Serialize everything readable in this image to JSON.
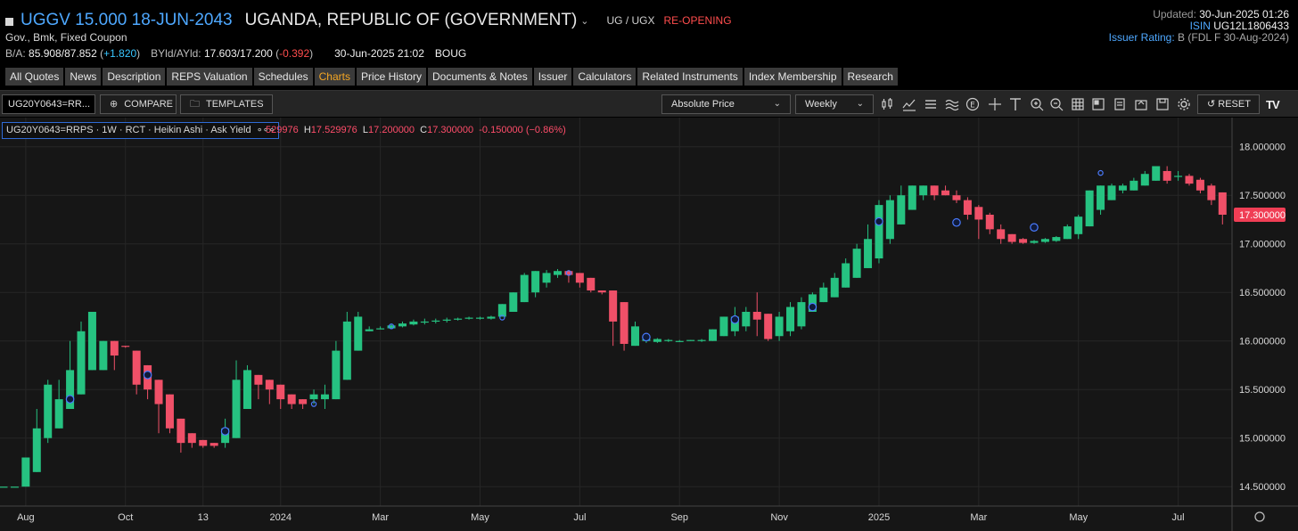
{
  "header": {
    "security_title": "UGGV 15.000 18-JUN-2043",
    "issuer": "UGANDA, REPUBLIC OF (GOVERNMENT)",
    "currency_pair": "UG / UGX",
    "status": "RE-OPENING",
    "subtitle": "Gov., Bmk, Fixed Coupon",
    "quote": {
      "ba_label": "B/A:",
      "ba_value": "85.908/87.852",
      "ba_change": "+1.820",
      "yield_label": "BYld/AYld:",
      "yield_value": "17.603/17.200",
      "yield_change": "-0.392",
      "timestamp": "30-Jun-2025 21:02",
      "source": "BOUG"
    },
    "updated_label": "Updated:",
    "updated_value": "30-Jun-2025 01:26",
    "isin_label": "ISIN",
    "isin_value": "UG12L1806433",
    "rating_label": "Issuer Rating:",
    "rating_value": "B",
    "rating_detail": "(FDL F 30-Aug-2024)"
  },
  "tabs": [
    "All Quotes",
    "News",
    "Description",
    "REPS Valuation",
    "Schedules",
    "Charts",
    "Price History",
    "Documents & Notes",
    "Issuer",
    "Calculators",
    "Related Instruments",
    "Index Membership",
    "Research"
  ],
  "active_tab": "Charts",
  "toolbar": {
    "ric_value": "UG20Y0643=RR...",
    "compare_label": "COMPARE",
    "templates_label": "TEMPLATES",
    "price_type": "Absolute Price",
    "interval": "Weekly",
    "reset_label": "RESET",
    "logo_text": "TV"
  },
  "legend": {
    "series": "UG20Y0643=RRPS · 1W · RCT · Heikin Ashi · Ask Yield",
    "menu": "∘∘∘",
    "ohlc_o": "529976",
    "ohlc_h_label": "H",
    "ohlc_h": "17.529976",
    "ohlc_l_label": "L",
    "ohlc_l": "17.200000",
    "ohlc_c_label": "C",
    "ohlc_c": "17.300000",
    "ohlc_change": "-0.150000 (−0.86%)"
  },
  "colors": {
    "up": "#26c281",
    "down": "#f05068",
    "accent": "#4ea8ff",
    "active_tab": "#f5a623",
    "last_price_bg": "#f03e55"
  },
  "chart_data": {
    "type": "candlestick",
    "style": "Heikin Ashi",
    "interval": "1W",
    "y_axis_ticks": [
      "14.500000",
      "15.000000",
      "15.500000",
      "16.000000",
      "16.500000",
      "17.000000",
      "17.500000",
      "18.000000"
    ],
    "ylim": [
      14.3,
      18.3
    ],
    "last_value_label": "17.300000",
    "x_axis_labels": [
      "Aug",
      "Oct",
      "13",
      "2024",
      "Mar",
      "May",
      "Jul",
      "Sep",
      "Nov",
      "2025",
      "Mar",
      "May",
      "Jul"
    ],
    "x_label_weeks": [
      2,
      11,
      18,
      25,
      34,
      43,
      52,
      61,
      70,
      79,
      88,
      97,
      106
    ],
    "x_week_count": 110,
    "grid": true,
    "candles": [
      {
        "w": 0,
        "o": 14.5,
        "h": 14.5,
        "l": 14.5,
        "c": 14.5
      },
      {
        "w": 1,
        "o": 14.5,
        "h": 14.5,
        "l": 14.5,
        "c": 14.5
      },
      {
        "w": 2,
        "o": 14.5,
        "h": 14.8,
        "l": 14.5,
        "c": 14.8
      },
      {
        "w": 3,
        "o": 14.65,
        "h": 15.3,
        "l": 14.65,
        "c": 15.1
      },
      {
        "w": 4,
        "o": 15.0,
        "h": 15.6,
        "l": 14.95,
        "c": 15.55
      },
      {
        "w": 5,
        "o": 15.1,
        "h": 15.6,
        "l": 15.1,
        "c": 15.4
      },
      {
        "w": 6,
        "o": 15.3,
        "h": 16.0,
        "l": 15.3,
        "c": 15.7
      },
      {
        "w": 7,
        "o": 15.45,
        "h": 16.2,
        "l": 15.45,
        "c": 16.1
      },
      {
        "w": 8,
        "o": 15.7,
        "h": 16.3,
        "l": 15.7,
        "c": 16.3
      },
      {
        "w": 9,
        "o": 15.7,
        "h": 16.0,
        "l": 15.7,
        "c": 16.0
      },
      {
        "w": 10,
        "o": 16.0,
        "h": 16.0,
        "l": 15.7,
        "c": 15.85
      },
      {
        "w": 11,
        "o": 15.95,
        "h": 15.95,
        "l": 15.93,
        "c": 15.94
      },
      {
        "w": 12,
        "o": 15.9,
        "h": 15.9,
        "l": 15.45,
        "c": 15.55
      },
      {
        "w": 13,
        "o": 15.75,
        "h": 15.75,
        "l": 15.4,
        "c": 15.5
      },
      {
        "w": 14,
        "o": 15.6,
        "h": 15.6,
        "l": 15.05,
        "c": 15.35
      },
      {
        "w": 15,
        "o": 15.45,
        "h": 15.45,
        "l": 15.05,
        "c": 15.1
      },
      {
        "w": 16,
        "o": 15.2,
        "h": 15.2,
        "l": 14.85,
        "c": 14.95
      },
      {
        "w": 17,
        "o": 15.05,
        "h": 15.05,
        "l": 14.9,
        "c": 14.95
      },
      {
        "w": 18,
        "o": 14.98,
        "h": 14.98,
        "l": 14.9,
        "c": 14.92
      },
      {
        "w": 19,
        "o": 14.95,
        "h": 14.95,
        "l": 14.9,
        "c": 14.92
      },
      {
        "w": 20,
        "o": 14.95,
        "h": 15.2,
        "l": 14.9,
        "c": 15.1
      },
      {
        "w": 21,
        "o": 15.0,
        "h": 15.8,
        "l": 15.0,
        "c": 15.6
      },
      {
        "w": 22,
        "o": 15.3,
        "h": 15.75,
        "l": 15.3,
        "c": 15.7
      },
      {
        "w": 23,
        "o": 15.65,
        "h": 15.65,
        "l": 15.4,
        "c": 15.55
      },
      {
        "w": 24,
        "o": 15.6,
        "h": 15.6,
        "l": 15.35,
        "c": 15.5
      },
      {
        "w": 25,
        "o": 15.55,
        "h": 15.55,
        "l": 15.3,
        "c": 15.4
      },
      {
        "w": 26,
        "o": 15.45,
        "h": 15.45,
        "l": 15.3,
        "c": 15.35
      },
      {
        "w": 27,
        "o": 15.4,
        "h": 15.4,
        "l": 15.3,
        "c": 15.35
      },
      {
        "w": 28,
        "o": 15.4,
        "h": 15.5,
        "l": 15.35,
        "c": 15.45
      },
      {
        "w": 29,
        "o": 15.4,
        "h": 15.55,
        "l": 15.3,
        "c": 15.45
      },
      {
        "w": 30,
        "o": 15.4,
        "h": 16.0,
        "l": 15.4,
        "c": 15.9
      },
      {
        "w": 31,
        "o": 15.6,
        "h": 16.3,
        "l": 15.6,
        "c": 16.2
      },
      {
        "w": 32,
        "o": 15.9,
        "h": 16.3,
        "l": 15.9,
        "c": 16.25
      },
      {
        "w": 33,
        "o": 16.1,
        "h": 16.15,
        "l": 16.1,
        "c": 16.12
      },
      {
        "w": 34,
        "o": 16.12,
        "h": 16.15,
        "l": 16.12,
        "c": 16.13
      },
      {
        "w": 35,
        "o": 16.13,
        "h": 16.17,
        "l": 16.13,
        "c": 16.16
      },
      {
        "w": 36,
        "o": 16.15,
        "h": 16.2,
        "l": 16.14,
        "c": 16.18
      },
      {
        "w": 37,
        "o": 16.17,
        "h": 16.22,
        "l": 16.16,
        "c": 16.2
      },
      {
        "w": 38,
        "o": 16.19,
        "h": 16.23,
        "l": 16.17,
        "c": 16.2
      },
      {
        "w": 39,
        "o": 16.2,
        "h": 16.23,
        "l": 16.18,
        "c": 16.21
      },
      {
        "w": 40,
        "o": 16.21,
        "h": 16.24,
        "l": 16.19,
        "c": 16.22
      },
      {
        "w": 41,
        "o": 16.22,
        "h": 16.24,
        "l": 16.21,
        "c": 16.23
      },
      {
        "w": 42,
        "o": 16.23,
        "h": 16.25,
        "l": 16.22,
        "c": 16.24
      },
      {
        "w": 43,
        "o": 16.23,
        "h": 16.25,
        "l": 16.22,
        "c": 16.24
      },
      {
        "w": 44,
        "o": 16.23,
        "h": 16.26,
        "l": 16.22,
        "c": 16.25
      },
      {
        "w": 45,
        "o": 16.25,
        "h": 16.38,
        "l": 16.25,
        "c": 16.38
      },
      {
        "w": 46,
        "o": 16.3,
        "h": 16.5,
        "l": 16.3,
        "c": 16.5
      },
      {
        "w": 47,
        "o": 16.4,
        "h": 16.7,
        "l": 16.4,
        "c": 16.68
      },
      {
        "w": 48,
        "o": 16.5,
        "h": 16.72,
        "l": 16.45,
        "c": 16.72
      },
      {
        "w": 49,
        "o": 16.6,
        "h": 16.73,
        "l": 16.55,
        "c": 16.7
      },
      {
        "w": 50,
        "o": 16.68,
        "h": 16.74,
        "l": 16.65,
        "c": 16.72
      },
      {
        "w": 51,
        "o": 16.72,
        "h": 16.73,
        "l": 16.6,
        "c": 16.68
      },
      {
        "w": 52,
        "o": 16.7,
        "h": 16.7,
        "l": 16.55,
        "c": 16.6
      },
      {
        "w": 53,
        "o": 16.65,
        "h": 16.65,
        "l": 16.5,
        "c": 16.52
      },
      {
        "w": 54,
        "o": 16.52,
        "h": 16.52,
        "l": 16.48,
        "c": 16.5
      },
      {
        "w": 55,
        "o": 16.52,
        "h": 16.52,
        "l": 15.95,
        "c": 16.2
      },
      {
        "w": 56,
        "o": 16.4,
        "h": 16.4,
        "l": 15.9,
        "c": 15.97
      },
      {
        "w": 57,
        "o": 15.95,
        "h": 16.2,
        "l": 15.95,
        "c": 16.15
      },
      {
        "w": 58,
        "o": 16.0,
        "h": 16.05,
        "l": 15.98,
        "c": 16.02
      },
      {
        "w": 59,
        "o": 15.99,
        "h": 16.03,
        "l": 15.98,
        "c": 16.02
      },
      {
        "w": 60,
        "o": 16.0,
        "h": 16.02,
        "l": 15.99,
        "c": 16.01
      },
      {
        "w": 61,
        "o": 15.99,
        "h": 16.01,
        "l": 15.99,
        "c": 16.0
      },
      {
        "w": 62,
        "o": 16.0,
        "h": 16.01,
        "l": 16.0,
        "c": 16.01
      },
      {
        "w": 63,
        "o": 16.0,
        "h": 16.02,
        "l": 15.99,
        "c": 16.01
      },
      {
        "w": 64,
        "o": 16.0,
        "h": 16.12,
        "l": 16.0,
        "c": 16.12
      },
      {
        "w": 65,
        "o": 16.05,
        "h": 16.25,
        "l": 16.05,
        "c": 16.25
      },
      {
        "w": 66,
        "o": 16.1,
        "h": 16.35,
        "l": 16.05,
        "c": 16.25
      },
      {
        "w": 67,
        "o": 16.15,
        "h": 16.35,
        "l": 16.1,
        "c": 16.3
      },
      {
        "w": 68,
        "o": 16.3,
        "h": 16.5,
        "l": 16.05,
        "c": 16.22
      },
      {
        "w": 69,
        "o": 16.28,
        "h": 16.28,
        "l": 16.0,
        "c": 16.02
      },
      {
        "w": 70,
        "o": 16.05,
        "h": 16.3,
        "l": 16.0,
        "c": 16.25
      },
      {
        "w": 71,
        "o": 16.1,
        "h": 16.4,
        "l": 16.05,
        "c": 16.35
      },
      {
        "w": 72,
        "o": 16.15,
        "h": 16.45,
        "l": 16.12,
        "c": 16.4
      },
      {
        "w": 73,
        "o": 16.3,
        "h": 16.5,
        "l": 16.3,
        "c": 16.48
      },
      {
        "w": 74,
        "o": 16.4,
        "h": 16.6,
        "l": 16.4,
        "c": 16.55
      },
      {
        "w": 75,
        "o": 16.45,
        "h": 16.7,
        "l": 16.45,
        "c": 16.65
      },
      {
        "w": 76,
        "o": 16.55,
        "h": 16.85,
        "l": 16.55,
        "c": 16.8
      },
      {
        "w": 77,
        "o": 16.65,
        "h": 17.0,
        "l": 16.65,
        "c": 16.95
      },
      {
        "w": 78,
        "o": 16.75,
        "h": 17.2,
        "l": 16.75,
        "c": 17.05
      },
      {
        "w": 79,
        "o": 16.85,
        "h": 17.45,
        "l": 16.8,
        "c": 17.4
      },
      {
        "w": 80,
        "o": 17.05,
        "h": 17.5,
        "l": 17.0,
        "c": 17.45
      },
      {
        "w": 81,
        "o": 17.2,
        "h": 17.6,
        "l": 17.2,
        "c": 17.5
      },
      {
        "w": 82,
        "o": 17.35,
        "h": 17.6,
        "l": 17.35,
        "c": 17.6
      },
      {
        "w": 83,
        "o": 17.5,
        "h": 17.6,
        "l": 17.45,
        "c": 17.6
      },
      {
        "w": 84,
        "o": 17.6,
        "h": 17.6,
        "l": 17.45,
        "c": 17.5
      },
      {
        "w": 85,
        "o": 17.55,
        "h": 17.6,
        "l": 17.5,
        "c": 17.5
      },
      {
        "w": 86,
        "o": 17.5,
        "h": 17.55,
        "l": 17.42,
        "c": 17.45
      },
      {
        "w": 87,
        "o": 17.45,
        "h": 17.48,
        "l": 17.25,
        "c": 17.3
      },
      {
        "w": 88,
        "o": 17.38,
        "h": 17.4,
        "l": 17.05,
        "c": 17.25
      },
      {
        "w": 89,
        "o": 17.3,
        "h": 17.32,
        "l": 17.1,
        "c": 17.15
      },
      {
        "w": 90,
        "o": 17.15,
        "h": 17.2,
        "l": 17.0,
        "c": 17.05
      },
      {
        "w": 91,
        "o": 17.1,
        "h": 17.1,
        "l": 17.0,
        "c": 17.02
      },
      {
        "w": 92,
        "o": 17.05,
        "h": 17.06,
        "l": 17.0,
        "c": 17.01
      },
      {
        "w": 93,
        "o": 17.01,
        "h": 17.04,
        "l": 17.0,
        "c": 17.03
      },
      {
        "w": 94,
        "o": 17.02,
        "h": 17.06,
        "l": 17.01,
        "c": 17.05
      },
      {
        "w": 95,
        "o": 17.03,
        "h": 17.08,
        "l": 17.02,
        "c": 17.07
      },
      {
        "w": 96,
        "o": 17.05,
        "h": 17.2,
        "l": 17.05,
        "c": 17.18
      },
      {
        "w": 97,
        "o": 17.1,
        "h": 17.3,
        "l": 17.05,
        "c": 17.28
      },
      {
        "w": 98,
        "o": 17.18,
        "h": 17.55,
        "l": 17.18,
        "c": 17.55
      },
      {
        "w": 99,
        "o": 17.35,
        "h": 17.6,
        "l": 17.3,
        "c": 17.6
      },
      {
        "w": 100,
        "o": 17.45,
        "h": 17.62,
        "l": 17.45,
        "c": 17.6
      },
      {
        "w": 101,
        "o": 17.55,
        "h": 17.62,
        "l": 17.52,
        "c": 17.6
      },
      {
        "w": 102,
        "o": 17.55,
        "h": 17.68,
        "l": 17.55,
        "c": 17.65
      },
      {
        "w": 103,
        "o": 17.6,
        "h": 17.75,
        "l": 17.6,
        "c": 17.72
      },
      {
        "w": 104,
        "o": 17.65,
        "h": 17.8,
        "l": 17.65,
        "c": 17.8
      },
      {
        "w": 105,
        "o": 17.75,
        "h": 17.8,
        "l": 17.62,
        "c": 17.65
      },
      {
        "w": 106,
        "o": 17.7,
        "h": 17.75,
        "l": 17.65,
        "c": 17.7
      },
      {
        "w": 107,
        "o": 17.7,
        "h": 17.72,
        "l": 17.6,
        "c": 17.62
      },
      {
        "w": 108,
        "o": 17.66,
        "h": 17.68,
        "l": 17.52,
        "c": 17.55
      },
      {
        "w": 109,
        "o": 17.6,
        "h": 17.62,
        "l": 17.4,
        "c": 17.45
      },
      {
        "w": 110,
        "o": 17.53,
        "h": 17.53,
        "l": 17.2,
        "c": 17.3
      }
    ],
    "markers": [
      {
        "w": 6,
        "y": 15.4,
        "filled": true
      },
      {
        "w": 13,
        "y": 15.65,
        "filled": true
      },
      {
        "w": 20,
        "y": 15.07,
        "filled": true
      },
      {
        "w": 28,
        "y": 15.35,
        "filled": false
      },
      {
        "w": 35,
        "y": 16.15,
        "filled": false
      },
      {
        "w": 45,
        "y": 16.24,
        "filled": false
      },
      {
        "w": 51,
        "y": 16.7,
        "filled": false
      },
      {
        "w": 58,
        "y": 16.04,
        "filled": true
      },
      {
        "w": 66,
        "y": 16.22,
        "filled": true
      },
      {
        "w": 73,
        "y": 16.35,
        "filled": true
      },
      {
        "w": 79,
        "y": 17.23,
        "filled": true
      },
      {
        "w": 86,
        "y": 17.22,
        "filled": true
      },
      {
        "w": 93,
        "y": 17.17,
        "filled": true
      },
      {
        "w": 99,
        "y": 17.73,
        "filled": false
      }
    ]
  }
}
